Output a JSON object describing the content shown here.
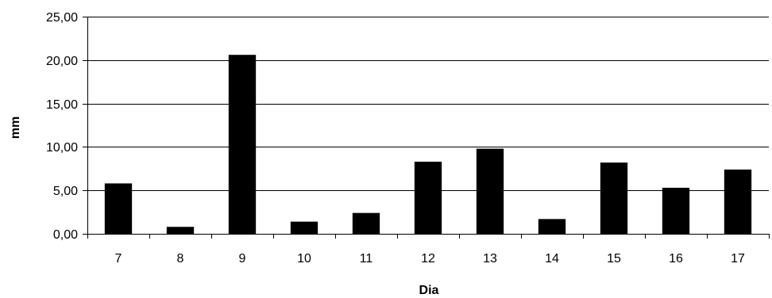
{
  "chart_data": {
    "type": "bar",
    "title": "",
    "xlabel": "Dia",
    "ylabel": "mm",
    "categories": [
      "7",
      "8",
      "9",
      "10",
      "11",
      "12",
      "13",
      "14",
      "15",
      "16",
      "17"
    ],
    "values": [
      5.8,
      0.8,
      20.6,
      1.4,
      2.4,
      8.3,
      9.8,
      1.7,
      8.2,
      5.3,
      7.4
    ],
    "ylim": [
      0,
      25
    ],
    "yticks": [
      "0,00",
      "5,00",
      "10,00",
      "15,00",
      "20,00",
      "25,00"
    ],
    "ytick_values": [
      0,
      5,
      10,
      15,
      20,
      25
    ],
    "grid": true,
    "legend": "none",
    "bar_color": "#000000"
  }
}
